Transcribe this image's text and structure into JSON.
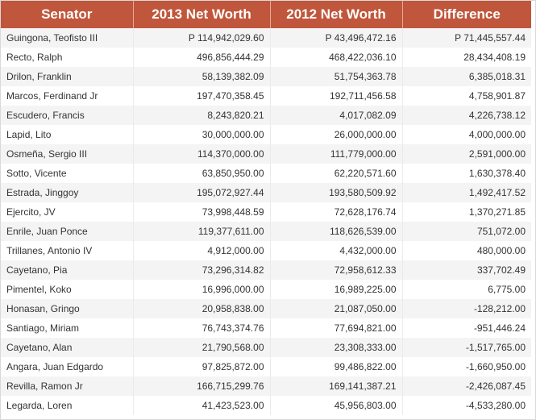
{
  "table": {
    "headers": [
      "Senator",
      "2013 Net Worth",
      "2012 Net Worth",
      "Difference"
    ],
    "rows": [
      [
        "Guingona, Teofisto III",
        "P 114,942,029.60",
        "P 43,496,472.16",
        "P 71,445,557.44"
      ],
      [
        "Recto, Ralph",
        "496,856,444.29",
        "468,422,036.10",
        "28,434,408.19"
      ],
      [
        "Drilon, Franklin",
        "58,139,382.09",
        "51,754,363.78",
        "6,385,018.31"
      ],
      [
        "Marcos, Ferdinand Jr",
        "197,470,358.45",
        "192,711,456.58",
        "4,758,901.87"
      ],
      [
        "Escudero, Francis",
        "8,243,820.21",
        "4,017,082.09",
        "4,226,738.12"
      ],
      [
        "Lapid, Lito",
        "30,000,000.00",
        "26,000,000.00",
        "4,000,000.00"
      ],
      [
        "Osmeña, Sergio III",
        "114,370,000.00",
        "111,779,000.00",
        "2,591,000.00"
      ],
      [
        "Sotto, Vicente",
        "63,850,950.00",
        "62,220,571.60",
        "1,630,378.40"
      ],
      [
        "Estrada, Jinggoy",
        "195,072,927.44",
        "193,580,509.92",
        "1,492,417.52"
      ],
      [
        "Ejercito, JV",
        "73,998,448.59",
        "72,628,176.74",
        "1,370,271.85"
      ],
      [
        "Enrile, Juan Ponce",
        "119,377,611.00",
        "118,626,539.00",
        "751,072.00"
      ],
      [
        "Trillanes, Antonio IV",
        "4,912,000.00",
        "4,432,000.00",
        "480,000.00"
      ],
      [
        "Cayetano, Pia",
        "73,296,314.82",
        "72,958,612.33",
        "337,702.49"
      ],
      [
        "Pimentel, Koko",
        "16,996,000.00",
        "16,989,225.00",
        "6,775.00"
      ],
      [
        "Honasan, Gringo",
        "20,958,838.00",
        "21,087,050.00",
        "-128,212.00"
      ],
      [
        "Santiago, Miriam",
        "76,743,374.76",
        "77,694,821.00",
        "-951,446.24"
      ],
      [
        "Cayetano, Alan",
        "21,790,568.00",
        "23,308,333.00",
        "-1,517,765.00"
      ],
      [
        "Angara, Juan Edgardo",
        "97,825,872.00",
        "99,486,822.00",
        "-1,660,950.00"
      ],
      [
        "Revilla, Ramon Jr",
        "166,715,299.76",
        "169,141,387.21",
        "-2,426,087.45"
      ],
      [
        "Legarda, Loren",
        "41,423,523.00",
        "45,956,803.00",
        "-4,533,280.00"
      ]
    ]
  },
  "colors": {
    "header_bg": "#c0573c",
    "header_text": "#ffffff",
    "stripe": "#f4f4f4",
    "body_text": "#333333"
  }
}
